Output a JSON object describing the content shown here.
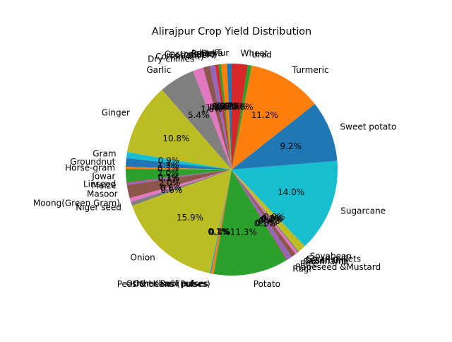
{
  "chart_data": {
    "type": "pie",
    "title": "Alirajpur Crop Yield Distribution",
    "start_angle_deg": 90,
    "direction": "counterclockwise",
    "slices": [
      {
        "label": "Arhar/Tur",
        "value": 0.7,
        "pct_label": "0.7%",
        "color": "#1f77b4"
      },
      {
        "label": "Bajra",
        "value": 0.9,
        "pct_label": "0.9%",
        "color": "#ff7f0e"
      },
      {
        "label": "Barley",
        "value": 0.4,
        "pct_label": "0.4%",
        "color": "#2ca02c"
      },
      {
        "label": "Castor seed",
        "value": 0.5,
        "pct_label": "0.5%",
        "color": "#d62728"
      },
      {
        "label": "Coriander",
        "value": 0.8,
        "pct_label": "0.8%",
        "color": "#9467bd"
      },
      {
        "label": "Cotton(lint)",
        "value": 1.0,
        "pct_label": "1.0%",
        "color": "#8c564b"
      },
      {
        "label": "Dry chillies",
        "value": 1.6,
        "pct_label": "1.6%",
        "color": "#e377c2"
      },
      {
        "label": "Garlic",
        "value": 5.4,
        "pct_label": "5.4%",
        "color": "#7f7f7f"
      },
      {
        "label": "Ginger",
        "value": 10.8,
        "pct_label": "10.8%",
        "color": "#bcbd22"
      },
      {
        "label": "Gram",
        "value": 0.9,
        "pct_label": "0.9%",
        "color": "#17becf"
      },
      {
        "label": "Groundnut",
        "value": 1.3,
        "pct_label": "1.3%",
        "color": "#1f77b4"
      },
      {
        "label": "Horse-gram",
        "value": 0.3,
        "pct_label": "0.3%",
        "color": "#ff7f0e"
      },
      {
        "label": "Jowar",
        "value": 2.0,
        "pct_label": "2.0%",
        "color": "#2ca02c"
      },
      {
        "label": "Linseed",
        "value": 0.1,
        "pct_label": "0.1%",
        "color": "#d62728"
      },
      {
        "label": "Maize",
        "value": 0.3,
        "pct_label": "0.3%",
        "color": "#9467bd"
      },
      {
        "label": "Masoor",
        "value": 2.0,
        "pct_label": "2.0%",
        "color": "#8c564b"
      },
      {
        "label": "Moong(Green Gram)",
        "value": 0.6,
        "pct_label": "0.6%",
        "color": "#e377c2"
      },
      {
        "label": "Niger seed",
        "value": 0.6,
        "pct_label": "0.6%",
        "color": "#7f7f7f"
      },
      {
        "label": "Onion",
        "value": 15.9,
        "pct_label": "15.9%",
        "color": "#bcbd22"
      },
      {
        "label": "Other Kharif pulses",
        "value": 0.1,
        "pct_label": "0.1%",
        "color": "#17becf"
      },
      {
        "label": "Other Rabi pulses",
        "value": 0.1,
        "pct_label": "0.1%",
        "color": "#1f77b4"
      },
      {
        "label": "Peas & beans (Pulses)",
        "value": 0.4,
        "pct_label": "0.4%",
        "color": "#ff7f0e"
      },
      {
        "label": "Potato",
        "value": 11.3,
        "pct_label": "11.3%",
        "color": "#2ca02c"
      },
      {
        "label": "Ragi",
        "value": 0.1,
        "pct_label": "0.1%",
        "color": "#d62728"
      },
      {
        "label": "Rapeseed &Mustard",
        "value": 0.8,
        "pct_label": "0.8%",
        "color": "#9467bd"
      },
      {
        "label": "Rice",
        "value": 0.7,
        "pct_label": "0.7%",
        "color": "#8c564b"
      },
      {
        "label": "Sannhamp",
        "value": 0.4,
        "pct_label": "0.4%",
        "color": "#e377c2"
      },
      {
        "label": "Sesamum",
        "value": 0.2,
        "pct_label": "0.2%",
        "color": "#7f7f7f"
      },
      {
        "label": "Small millets",
        "value": 0.3,
        "pct_label": "0.3%",
        "color": "#bcbd22"
      },
      {
        "label": "Soyabean",
        "value": 0.9,
        "pct_label": "0.9%",
        "color": "#bcbd22"
      },
      {
        "label": "Sugarcane",
        "value": 14.0,
        "pct_label": "14.0%",
        "color": "#17becf"
      },
      {
        "label": "Sweet potato",
        "value": 9.2,
        "pct_label": "9.2%",
        "color": "#1f77b4"
      },
      {
        "label": "Turmeric",
        "value": 11.2,
        "pct_label": "11.2%",
        "color": "#ff7f0e"
      },
      {
        "label": "Urad",
        "value": 0.6,
        "pct_label": "0.6%",
        "color": "#2ca02c"
      },
      {
        "label": "Wheat",
        "value": 2.4,
        "pct_label": "2.4%",
        "color": "#d62728"
      }
    ]
  }
}
